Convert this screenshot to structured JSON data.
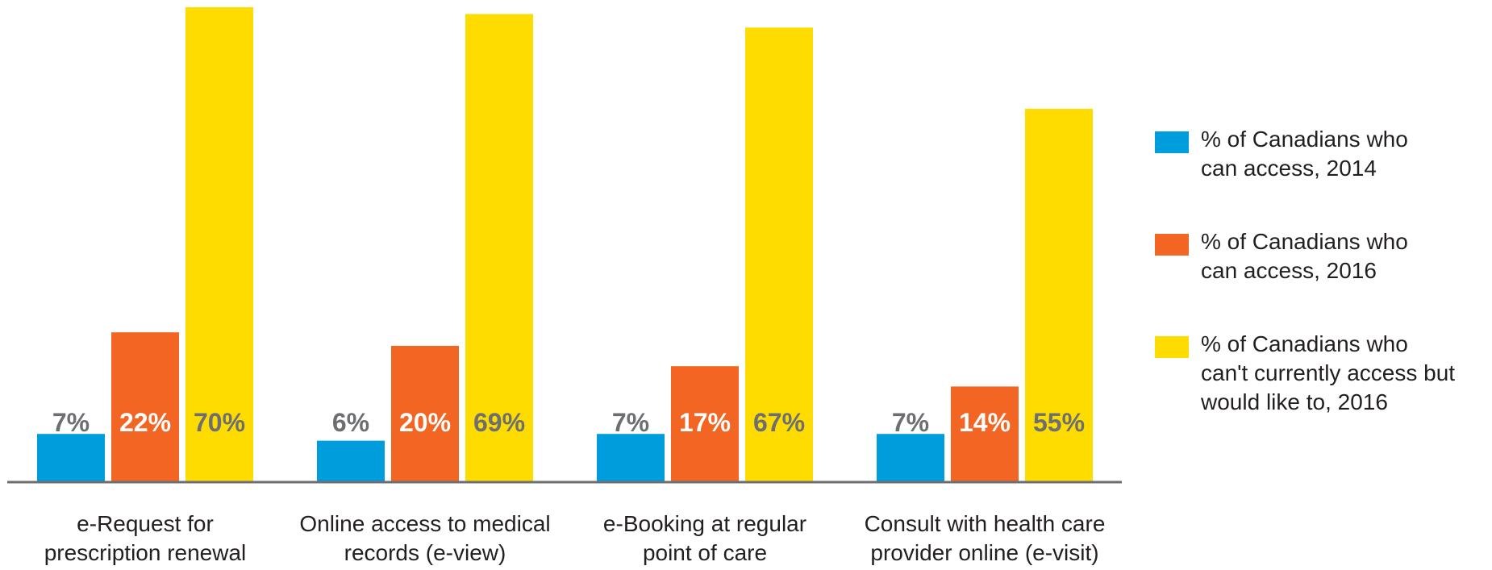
{
  "chart_data": {
    "type": "bar",
    "categories": [
      "e-Request for\nprescription renewal",
      "Online access to medical\nrecords (e-view)",
      "e-Booking at regular\npoint of care",
      "Consult with health care\nprovider online (e-visit)"
    ],
    "series": [
      {
        "name": "% of Canadians who\ncan access, 2014",
        "color": "#009ddc",
        "label_color": "#6d6e71",
        "values": [
          7,
          6,
          7,
          7
        ],
        "value_labels": [
          "7%",
          "6%",
          "7%",
          "7%"
        ]
      },
      {
        "name": "% of Canadians who\ncan access, 2016",
        "color": "#f26522",
        "label_color": "#ffffff",
        "values": [
          22,
          20,
          17,
          14
        ],
        "value_labels": [
          "22%",
          "20%",
          "17%",
          "14%"
        ]
      },
      {
        "name": "% of Canadians who\ncan't currently access but\nwould like to, 2016",
        "color": "#ffdc00",
        "label_color": "#6d6e71",
        "values": [
          70,
          69,
          67,
          55
        ],
        "value_labels": [
          "70%",
          "69%",
          "67%",
          "55%"
        ]
      }
    ],
    "ylim": [
      0,
      70
    ],
    "legend": "right"
  }
}
